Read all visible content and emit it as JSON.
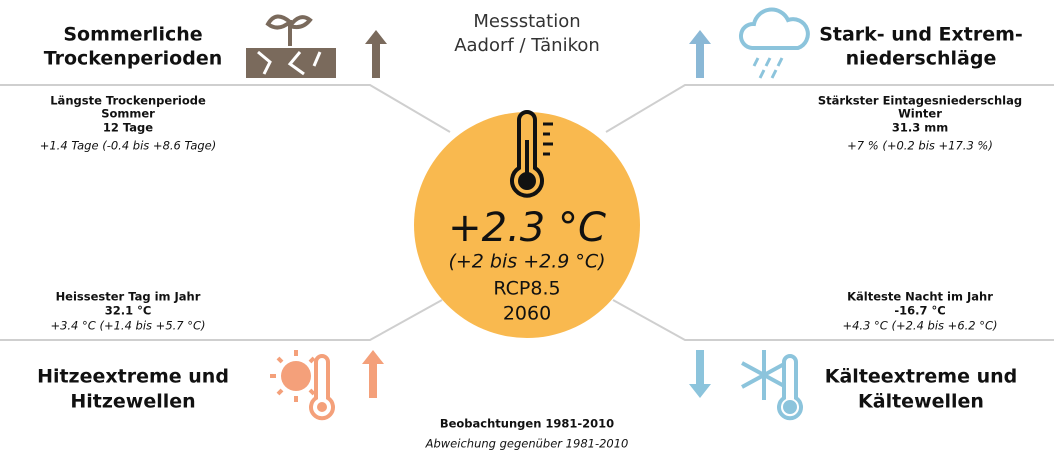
{
  "station": {
    "lines": [
      "Messstation",
      "Aadorf / Tänikon"
    ]
  },
  "center": {
    "value": "+2.3 °C",
    "range": "(+2 bis +2.9 °C)",
    "scenario": "RCP8.5",
    "year": "2060"
  },
  "panels": [
    {
      "title": [
        "Sommerliche",
        "Trockenperioden"
      ],
      "indicator": [
        "Längste Trockenperiode",
        "Sommer",
        "12 Tage"
      ],
      "change": "+1.4 Tage (-0.4 bis +8.6 Tage)"
    },
    {
      "title": [
        "Stark- und Extrem-",
        "niederschläge"
      ],
      "indicator": [
        "Stärkster Eintagesniederschlag",
        "Winter",
        "31.3 mm"
      ],
      "change": "+7 % (+0.2 bis +17.3 %)"
    },
    {
      "title": [
        "Hitzeextreme und",
        "Hitzewellen"
      ],
      "indicator": [
        "Heissester Tag im Jahr",
        "32.1 °C"
      ],
      "change": "+3.4 °C (+1.4 bis +5.7 °C)"
    },
    {
      "title": [
        "Kälteextreme und",
        "Kältewellen"
      ],
      "indicator": [
        "Kälteste Nacht im Jahr",
        "-16.7 °C"
      ],
      "change": "+4.3 °C (+2.4 bis +6.2 °C)"
    }
  ],
  "footer": {
    "observation": "Beobachtungen 1981-2010",
    "deviation": "Abweichung gegenüber 1981-2010"
  }
}
